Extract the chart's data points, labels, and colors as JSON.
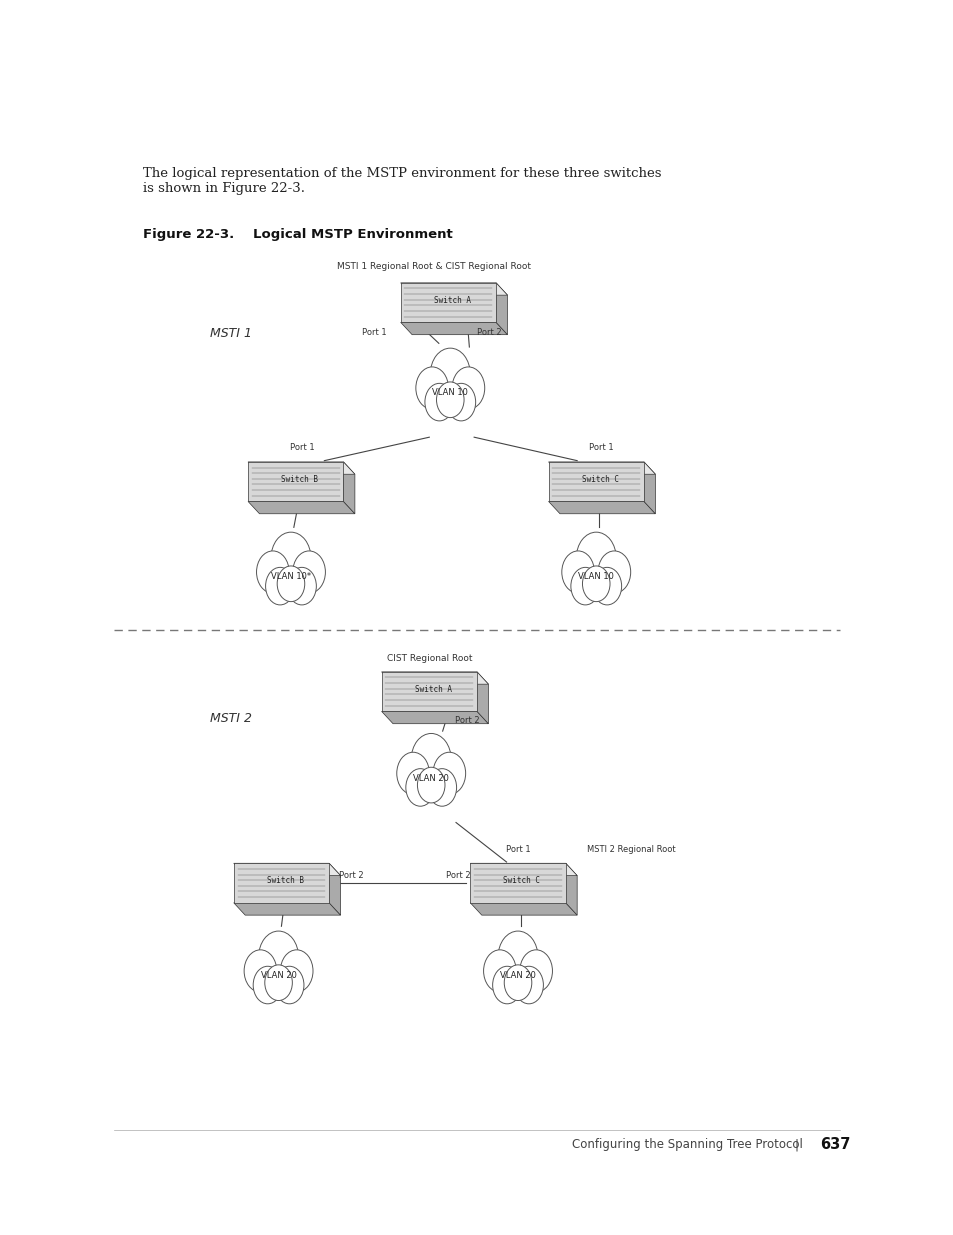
{
  "bg_color": "#ffffff",
  "intro_text": "The logical representation of the MSTP environment for these three switches\nis shown in Figure 22-3.",
  "figure_label": "Figure 22-3.",
  "figure_title": "Logical MSTP Environment",
  "footer_text": "Configuring the Spanning Tree Protocol",
  "footer_sep": "|",
  "footer_page": "637",
  "msti1_label": "MSTI 1",
  "msti2_label": "MSTI 2",
  "msti1_top_label": "MSTI 1 Regional Root & CIST Regional Root",
  "msti2_top_label": "CIST Regional Root",
  "msti2_right_label": "MSTI 2 Regional Root",
  "dashed_line_y": 0.49
}
